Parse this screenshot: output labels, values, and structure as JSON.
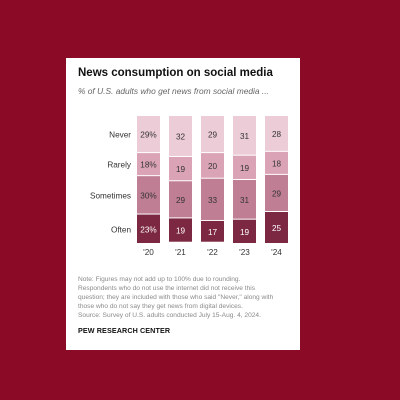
{
  "card": {
    "title": "News consumption on social media",
    "subtitle": "% of U.S. adults who get news from social media ...",
    "note_lines": [
      "Note: Figures may not add up to 100% due to rounding.",
      "Respondents who do not use the internet did not receive this",
      "question; they are included with those who said \"Never,\" along with",
      "those who do not say they get news from digital devices.",
      "Source: Survey of U.S. adults conducted July 15-Aug. 4, 2024."
    ],
    "logo": "PEW RESEARCH CENTER"
  },
  "colors": {
    "background": "#8b0a26",
    "Never": "#ecccd6",
    "Rarely": "#dba4b6",
    "Sometimes": "#bf7e94",
    "Often": "#7d2843"
  },
  "chart_data": {
    "type": "bar",
    "stacked": true,
    "orientation": "vertical",
    "title": "News consumption on social media",
    "subtitle": "% of U.S. adults who get news from social media ...",
    "categories": [
      "'20",
      "'21",
      "'22",
      "'23",
      "'24"
    ],
    "ylim": [
      0,
      100
    ],
    "grid": false,
    "legend": "left-side labels",
    "series": [
      {
        "name": "Never",
        "values": [
          29,
          32,
          29,
          31,
          28
        ],
        "labels": [
          "29%",
          "32",
          "29",
          "31",
          "28"
        ]
      },
      {
        "name": "Rarely",
        "values": [
          18,
          19,
          20,
          19,
          18
        ],
        "labels": [
          "18%",
          "19",
          "20",
          "19",
          "18"
        ]
      },
      {
        "name": "Sometimes",
        "values": [
          30,
          29,
          33,
          31,
          29
        ],
        "labels": [
          "30%",
          "29",
          "33",
          "31",
          "29"
        ]
      },
      {
        "name": "Often",
        "values": [
          23,
          19,
          17,
          19,
          25
        ],
        "labels": [
          "23%",
          "19",
          "17",
          "19",
          "25"
        ]
      }
    ]
  }
}
